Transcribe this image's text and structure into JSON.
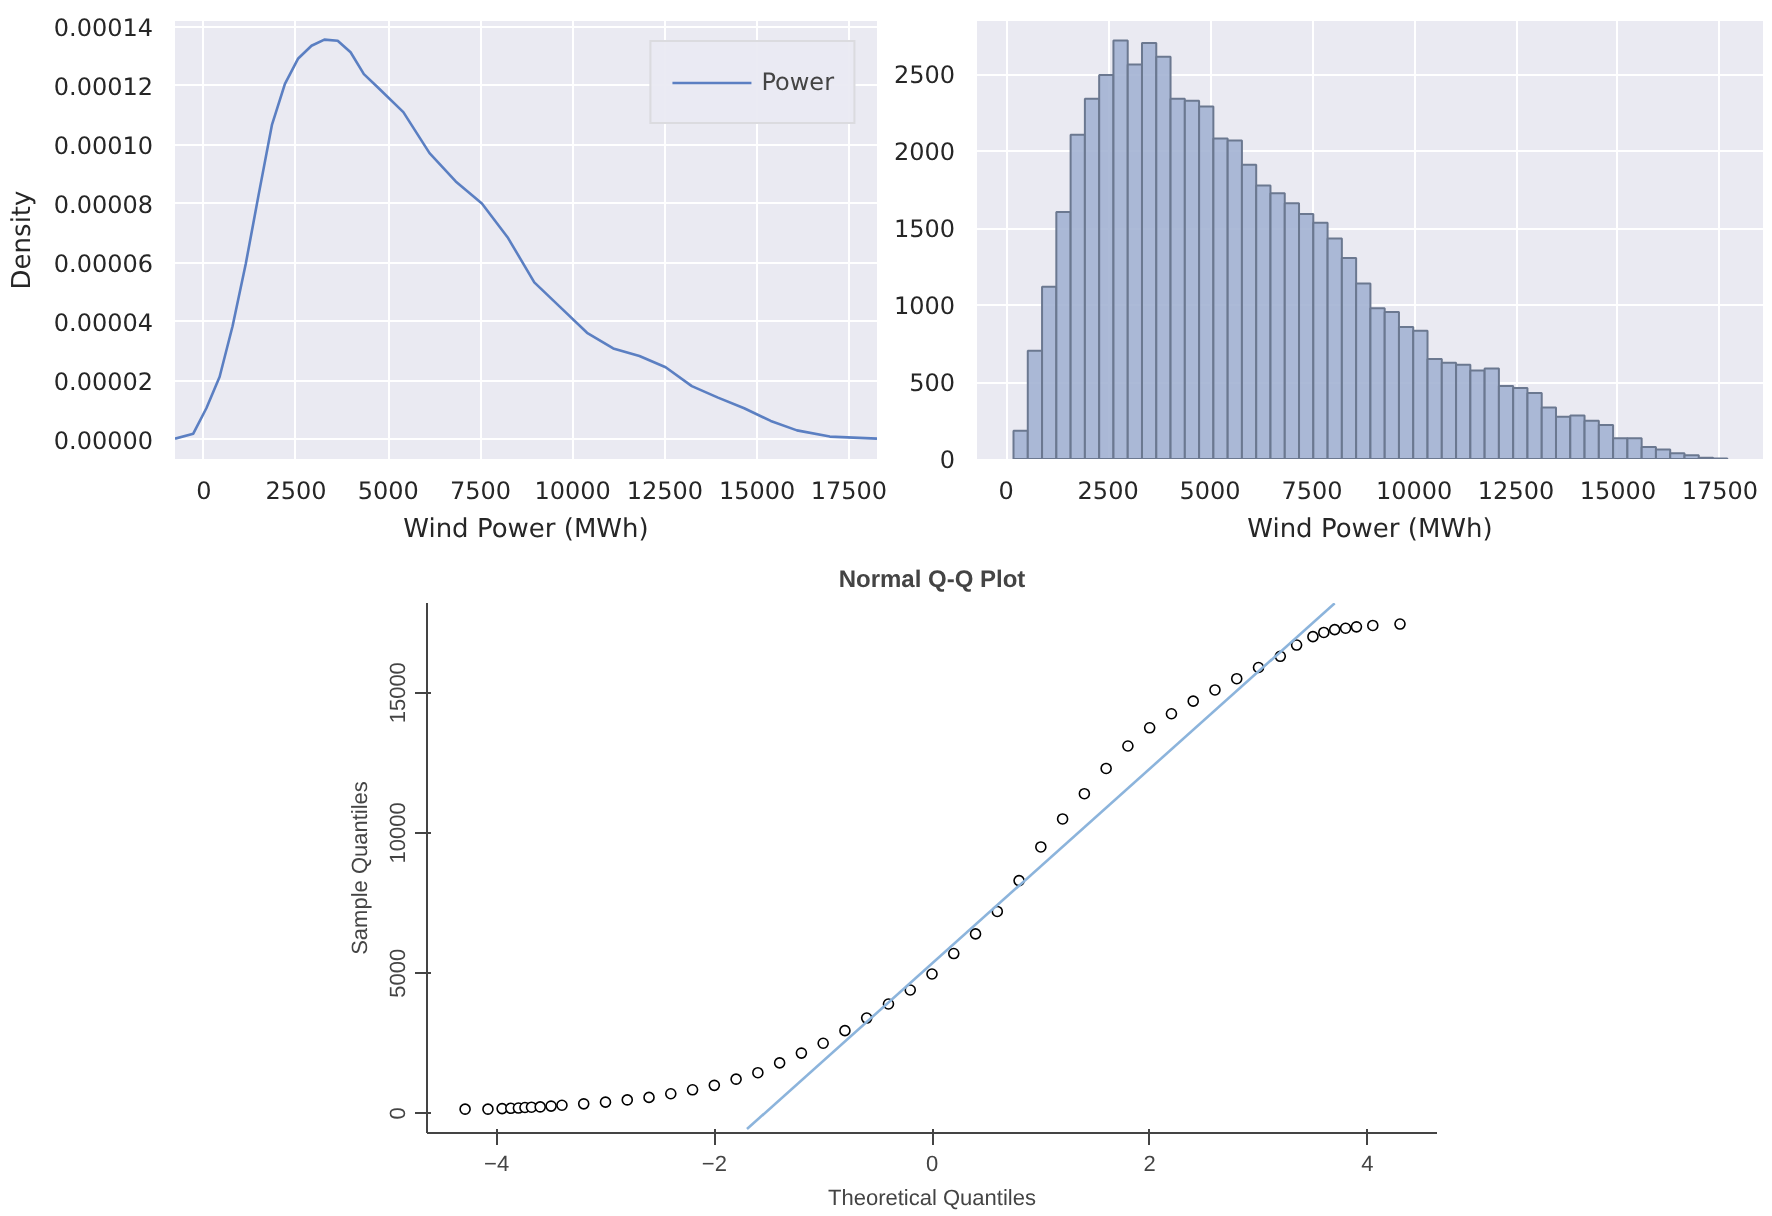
{
  "chart_data": [
    {
      "type": "line",
      "xlabel": "Wind Power (MWh)",
      "ylabel": "Density",
      "legend": "top right",
      "grid": true,
      "marker": "none",
      "line_style": "solid",
      "xlim": [
        -780,
        18250
      ],
      "ylim": [
        -6.5e-06,
        0.000142
      ],
      "xticks": [
        0,
        2500,
        5000,
        7500,
        10000,
        12500,
        15000,
        17500
      ],
      "yticks": [
        {
          "value": 0,
          "label": "0.00000"
        },
        {
          "value": 2e-05,
          "label": "0.00002"
        },
        {
          "value": 4e-05,
          "label": "0.00004"
        },
        {
          "value": 6e-05,
          "label": "0.00006"
        },
        {
          "value": 8e-05,
          "label": "0.00008"
        },
        {
          "value": 0.0001,
          "label": "0.00010"
        },
        {
          "value": 0.00012,
          "label": "0.00012"
        },
        {
          "value": 0.00014,
          "label": "0.00014"
        }
      ],
      "x": [
        -780,
        -285,
        70,
        430,
        780,
        1140,
        1490,
        1850,
        2200,
        2560,
        2920,
        3270,
        3630,
        3980,
        4340,
        4700,
        5410,
        6120,
        6830,
        7540,
        8250,
        8960,
        9670,
        10390,
        11100,
        11810,
        12520,
        13230,
        13940,
        14650,
        15370,
        16080,
        16970,
        18250
      ],
      "series": [
        {
          "name": "Power",
          "color": "#5b7fc2",
          "values": [
            4e-07,
            2.1e-06,
            1.07e-05,
            2.14e-05,
            3.85e-05,
            5.98e-05,
            8.33e-05,
            0.0001069,
            0.0001207,
            0.0001293,
            0.0001336,
            0.0001357,
            0.0001353,
            0.0001314,
            0.000124,
            0.0001197,
            0.0001111,
            9.72e-05,
            8.76e-05,
            8.01e-05,
            6.84e-05,
            5.34e-05,
            4.49e-05,
            3.63e-05,
            3.1e-05,
            2.84e-05,
            2.46e-05,
            1.82e-05,
            1.43e-05,
            1.07e-05,
            6.4e-06,
            3.2e-06,
            1.1e-06,
            4e-07
          ]
        }
      ]
    },
    {
      "type": "histogram",
      "xlabel": "Wind Power (MWh)",
      "grid": true,
      "color": "#a3b3d3",
      "xlim": [
        -715,
        18555
      ],
      "ylim": [
        0,
        2847
      ],
      "xticks": [
        0,
        2500,
        5000,
        7500,
        10000,
        12500,
        15000,
        17500
      ],
      "yticks": [
        0,
        500,
        1000,
        1500,
        2000,
        2500
      ],
      "bins": [
        180,
        530,
        880,
        1230,
        1580,
        1930,
        2280,
        2630,
        2980,
        3330,
        3680,
        4030,
        4380,
        4730,
        5080,
        5430,
        5780,
        6130,
        6480,
        6830,
        7180,
        7530,
        7880,
        8230,
        8580,
        8930,
        9280,
        9630,
        9980,
        10330,
        10680,
        11030,
        11380,
        11730,
        12080,
        12430,
        12780,
        13130,
        13480,
        13830,
        14180,
        14530,
        14880,
        15230,
        15580,
        15930,
        16280,
        16630,
        16980,
        17330,
        17680
      ],
      "values": [
        184,
        703,
        1119,
        1605,
        2108,
        2341,
        2496,
        2721,
        2565,
        2704,
        2614,
        2341,
        2328,
        2292,
        2083,
        2071,
        1912,
        1777,
        1728,
        1663,
        1593,
        1536,
        1434,
        1307,
        1140,
        980,
        956,
        858,
        833,
        650,
        625,
        613,
        576,
        588,
        474,
        462,
        429,
        335,
        274,
        282,
        249,
        221,
        135,
        135,
        78,
        61,
        37,
        25,
        8,
        4
      ]
    },
    {
      "type": "scatter",
      "title": "Normal Q-Q Plot",
      "xlabel": "Theoretical Quantiles",
      "ylabel": "Sample Quantiles",
      "grid": false,
      "legend": false,
      "xlim": [
        -4.64,
        4.64
      ],
      "ylim": [
        -700,
        18200
      ],
      "xticks": [
        -4,
        -2,
        0,
        2,
        4
      ],
      "yticks": [
        0,
        5000,
        10000,
        15000
      ],
      "series": [
        {
          "type": "scatter",
          "marker": "circle",
          "color": "#000000",
          "x": [
            -4.29,
            -4.08,
            -3.95,
            -3.87,
            -3.8,
            -3.74,
            -3.68,
            -3.6,
            -3.5,
            -3.4,
            -3.2,
            -3.0,
            -2.8,
            -2.6,
            -2.4,
            -2.2,
            -2.0,
            -1.8,
            -1.6,
            -1.4,
            -1.2,
            -1.0,
            -0.8,
            -0.6,
            -0.4,
            -0.2,
            0.0,
            0.2,
            0.4,
            0.6,
            0.8,
            1.0,
            1.2,
            1.4,
            1.6,
            1.8,
            2.0,
            2.2,
            2.4,
            2.6,
            2.8,
            3.0,
            3.2,
            3.35,
            3.5,
            3.6,
            3.7,
            3.8,
            3.9,
            4.05,
            4.3
          ],
          "values": [
            150,
            150,
            170,
            180,
            190,
            210,
            220,
            230,
            260,
            290,
            340,
            400,
            480,
            570,
            700,
            840,
            1000,
            1220,
            1450,
            1800,
            2150,
            2500,
            2950,
            3400,
            3900,
            4400,
            4970,
            5700,
            6400,
            7200,
            8300,
            9500,
            10500,
            11400,
            12300,
            13100,
            13750,
            14250,
            14700,
            15100,
            15500,
            15900,
            16300,
            16700,
            17000,
            17150,
            17250,
            17300,
            17350,
            17400,
            17450
          ]
        },
        {
          "type": "line",
          "color": "#8cb4dc",
          "x": [
            -1.7,
            3.7
          ],
          "values": [
            -560,
            18190
          ]
        }
      ]
    }
  ]
}
